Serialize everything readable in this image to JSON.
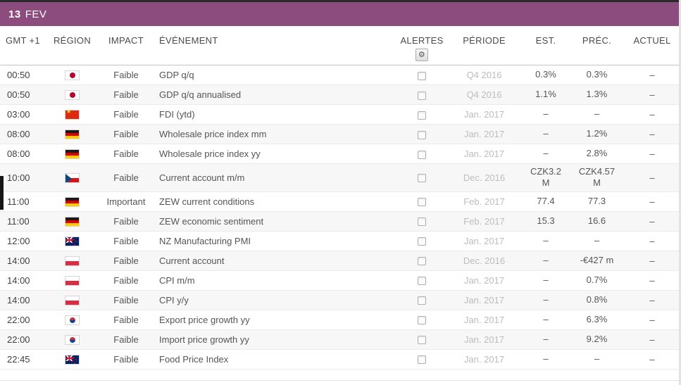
{
  "header": {
    "day": "13",
    "month": "FEV"
  },
  "table": {
    "columns": {
      "time": "GMT +1",
      "region": "RÉGION",
      "impact": "IMPACT",
      "event": "ÉVÉNEMENT",
      "alerts": "ALERTES",
      "period": "PÉRIODE",
      "est": "EST.",
      "prev": "PRÉC.",
      "actual": "ACTUEL"
    },
    "alerts_gear_icon": "gear-icon",
    "rows": [
      {
        "time": "00:50",
        "region_icon": "flag-japan",
        "impact": "Faible",
        "event": "GDP q/q",
        "period": "Q4 2016",
        "est": "0.3%",
        "prev": "0.3%",
        "actual": "–"
      },
      {
        "time": "00:50",
        "region_icon": "flag-japan",
        "impact": "Faible",
        "event": "GDP q/q annualised",
        "period": "Q4 2016",
        "est": "1.1%",
        "prev": "1.3%",
        "actual": "–"
      },
      {
        "time": "03:00",
        "region_icon": "flag-china",
        "impact": "Faible",
        "event": "FDI (ytd)",
        "period": "Jan. 2017",
        "est": "–",
        "prev": "–",
        "actual": "–"
      },
      {
        "time": "08:00",
        "region_icon": "flag-germany",
        "impact": "Faible",
        "event": "Wholesale price index mm",
        "period": "Jan. 2017",
        "est": "–",
        "prev": "1.2%",
        "actual": "–"
      },
      {
        "time": "08:00",
        "region_icon": "flag-germany",
        "impact": "Faible",
        "event": "Wholesale price index yy",
        "period": "Jan. 2017",
        "est": "–",
        "prev": "2.8%",
        "actual": "–"
      },
      {
        "time": "10:00",
        "region_icon": "flag-czech",
        "impact": "Faible",
        "event": "Current account m/m",
        "period": "Dec. 2016",
        "est": "CZK3.2 M",
        "prev": "CZK4.57 M",
        "actual": "–"
      },
      {
        "time": "11:00",
        "region_icon": "flag-germany",
        "impact": "Important",
        "event": "ZEW current conditions",
        "period": "Feb. 2017",
        "est": "77.4",
        "prev": "77.3",
        "actual": "–"
      },
      {
        "time": "11:00",
        "region_icon": "flag-germany",
        "impact": "Faible",
        "event": "ZEW economic sentiment",
        "period": "Feb. 2017",
        "est": "15.3",
        "prev": "16.6",
        "actual": "–"
      },
      {
        "time": "12:00",
        "region_icon": "flag-newzealand",
        "impact": "Faible",
        "event": "NZ Manufacturing PMI",
        "period": "Jan. 2017",
        "est": "–",
        "prev": "–",
        "actual": "–"
      },
      {
        "time": "14:00",
        "region_icon": "flag-poland",
        "impact": "Faible",
        "event": "Current account",
        "period": "Dec. 2016",
        "est": "–",
        "prev": "-€427 m",
        "actual": "–"
      },
      {
        "time": "14:00",
        "region_icon": "flag-poland",
        "impact": "Faible",
        "event": "CPI m/m",
        "period": "Jan. 2017",
        "est": "–",
        "prev": "0.7%",
        "actual": "–"
      },
      {
        "time": "14:00",
        "region_icon": "flag-poland",
        "impact": "Faible",
        "event": "CPI y/y",
        "period": "Jan. 2017",
        "est": "–",
        "prev": "0.8%",
        "actual": "–"
      },
      {
        "time": "22:00",
        "region_icon": "flag-southkorea",
        "impact": "Faible",
        "event": "Export price growth yy",
        "period": "Jan. 2017",
        "est": "–",
        "prev": "6.3%",
        "actual": "–"
      },
      {
        "time": "22:00",
        "region_icon": "flag-southkorea",
        "impact": "Faible",
        "event": "Import price growth yy",
        "period": "Jan. 2017",
        "est": "–",
        "prev": "9.2%",
        "actual": "–"
      },
      {
        "time": "22:45",
        "region_icon": "flag-newzealand",
        "impact": "Faible",
        "event": "Food Price Index",
        "period": "Jan. 2017",
        "est": "–",
        "prev": "–",
        "actual": "–"
      }
    ]
  },
  "icons": {
    "alerts_settings": "gear-icon"
  },
  "colors": {
    "accent": "#8d4c7e",
    "period_text": "#bdbdbd",
    "row_alt": "#f7f7f7"
  }
}
